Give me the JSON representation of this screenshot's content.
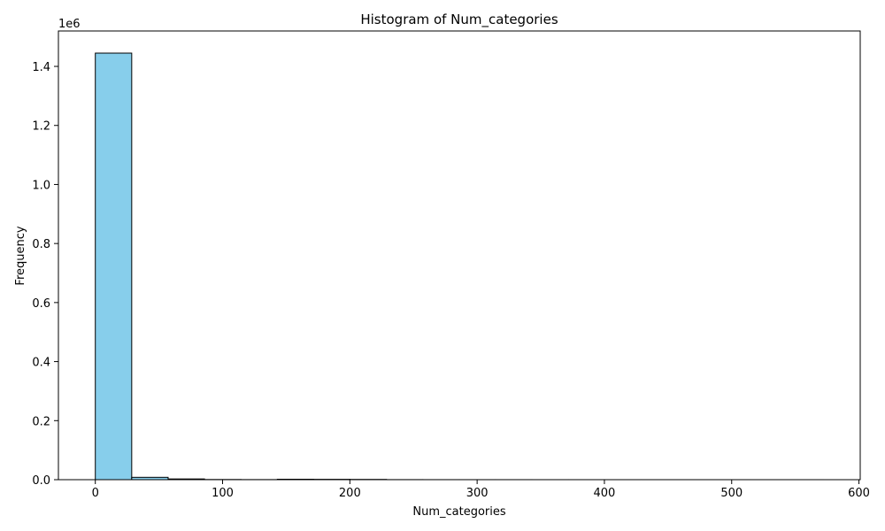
{
  "chart_data": {
    "type": "bar",
    "title": "Histogram of Num_categories",
    "xlabel": "Num_categories",
    "ylabel": "Frequency",
    "y_offset_label": "1e6",
    "xlim": [
      -29,
      601
    ],
    "ylim": [
      0,
      1520000
    ],
    "xticks": [
      0,
      100,
      200,
      300,
      400,
      500,
      600
    ],
    "yticks": [
      0.0,
      0.2,
      0.4,
      0.6,
      0.8,
      1.0,
      1.2,
      1.4
    ],
    "ytick_scale": 1000000,
    "bin_edges": [
      0,
      28.6,
      57.2,
      85.8,
      114.4,
      143.0,
      171.6,
      200.2,
      228.8,
      257.4,
      286.0,
      314.6,
      343.2,
      371.8,
      400.4,
      429.0,
      457.6,
      486.2,
      514.8,
      543.4,
      572.0
    ],
    "counts": [
      1445000,
      8000,
      2500,
      600,
      300,
      1500,
      1200,
      900,
      200,
      100,
      80,
      60,
      40,
      30,
      20,
      15,
      10,
      8,
      5,
      3
    ],
    "bar_color": "#87ceeb",
    "edge_color": "#000000",
    "grid": false
  }
}
